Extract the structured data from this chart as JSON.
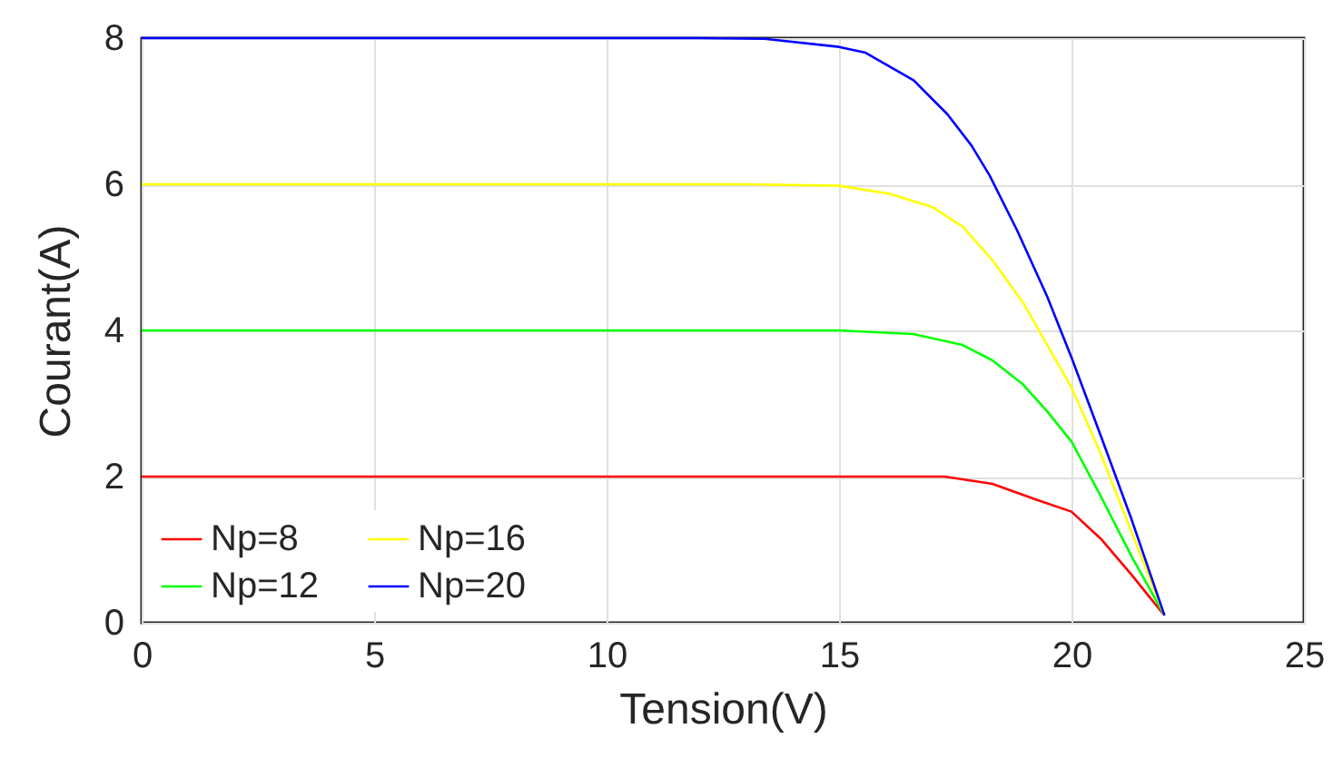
{
  "chart_data": {
    "type": "line",
    "xlabel": "Tension(V)",
    "ylabel": "Courant(A)",
    "xlim": [
      0,
      25
    ],
    "ylim": [
      0,
      8
    ],
    "xticks": [
      0,
      5,
      10,
      15,
      20,
      25
    ],
    "yticks": [
      0,
      2,
      4,
      6,
      8
    ],
    "grid": true,
    "legend": "bottom left",
    "line_style": "solid",
    "marker": "none",
    "series": [
      {
        "name": "Np=8",
        "color": "#ff0000",
        "x": [
          0,
          16,
          17.27,
          18.3,
          19.22,
          20,
          20.63,
          21.3,
          22
        ],
        "values": [
          2,
          2,
          2,
          1.9,
          1.69,
          1.52,
          1.15,
          0.65,
          0.1
        ]
      },
      {
        "name": "Np=12",
        "color": "#00ff00",
        "x": [
          0,
          15,
          16.6,
          17.66,
          18.3,
          18.96,
          19.48,
          20,
          20.63,
          21.3,
          22
        ],
        "values": [
          4,
          4,
          3.95,
          3.8,
          3.59,
          3.26,
          2.89,
          2.48,
          1.73,
          0.9,
          0.1
        ]
      },
      {
        "name": "Np=16",
        "color": "#ffff00",
        "x": [
          0,
          13,
          15,
          16.09,
          17,
          17.66,
          18.3,
          18.96,
          19.48,
          20,
          20.63,
          21.3,
          22
        ],
        "values": [
          6,
          6,
          5.98,
          5.87,
          5.69,
          5.42,
          4.96,
          4.38,
          3.8,
          3.22,
          2.31,
          1.23,
          0.1
        ]
      },
      {
        "name": "Np=20",
        "color": "#0000ff",
        "x": [
          0,
          12,
          13.4,
          15,
          15.57,
          16.61,
          17.33,
          17.85,
          18.24,
          18.83,
          19.48,
          20,
          20.63,
          21.3,
          22
        ],
        "values": [
          8,
          8,
          7.99,
          7.88,
          7.8,
          7.42,
          6.96,
          6.53,
          6.12,
          5.37,
          4.46,
          3.63,
          2.56,
          1.4,
          0.1
        ]
      }
    ]
  }
}
